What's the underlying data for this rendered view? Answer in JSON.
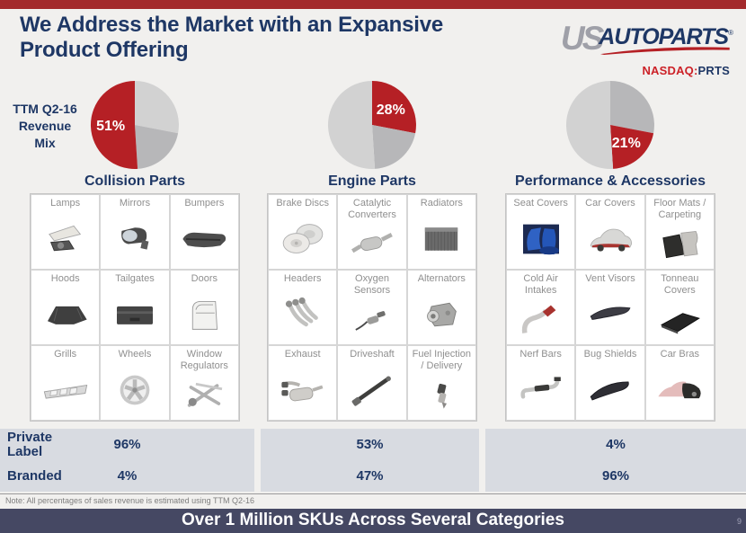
{
  "slide": {
    "title": "We Address the Market with an Expansive\nProduct Offering",
    "revenue_mix_label": "TTM Q2-16\nRevenue\nMix"
  },
  "logo": {
    "us": "US",
    "autoparts": "AUTOPARTS",
    "registered": "®",
    "nasdaq": "NASDAQ:",
    "ticker": "PRTS"
  },
  "colors": {
    "accent_red": "#b52025",
    "navy": "#1e3765",
    "pie_light_gray": "#d2d2d2",
    "pie_mid_gray": "#b7b7b9",
    "table_bg": "#d8dbe1",
    "footer_bg": "#454863",
    "top_bar": "#a32a2c"
  },
  "chart_data": [
    {
      "type": "pie",
      "title": "Collision Parts",
      "label": "51%",
      "slices": [
        {
          "name": "Engine Parts",
          "value": 28,
          "color": "#d2d2d2"
        },
        {
          "name": "Performance & Accessories",
          "value": 21,
          "color": "#b7b7b9"
        },
        {
          "name": "Collision Parts",
          "value": 51,
          "color": "#b52025",
          "label": "51%"
        }
      ]
    },
    {
      "type": "pie",
      "title": "Engine Parts",
      "label": "28%",
      "slices": [
        {
          "name": "Engine Parts",
          "value": 28,
          "color": "#b52025",
          "label": "28%"
        },
        {
          "name": "Performance & Accessories",
          "value": 21,
          "color": "#b7b7b9"
        },
        {
          "name": "Collision Parts",
          "value": 51,
          "color": "#d2d2d2"
        }
      ]
    },
    {
      "type": "pie",
      "title": "Performance & Accessories",
      "label": "21%",
      "slices": [
        {
          "name": "Engine Parts",
          "value": 28,
          "color": "#b7b7b9"
        },
        {
          "name": "Performance & Accessories",
          "value": 21,
          "color": "#b52025",
          "label": "21%"
        },
        {
          "name": "Collision Parts",
          "value": 51,
          "color": "#d2d2d2"
        }
      ]
    }
  ],
  "categories": [
    {
      "title": "Collision Parts",
      "share": "51%",
      "private_label": "96%",
      "branded": "4%",
      "items": [
        {
          "label": "Lamps",
          "icon": "lamps"
        },
        {
          "label": "Mirrors",
          "icon": "mirrors"
        },
        {
          "label": "Bumpers",
          "icon": "bumpers"
        },
        {
          "label": "Hoods",
          "icon": "hoods"
        },
        {
          "label": "Tailgates",
          "icon": "tailgates"
        },
        {
          "label": "Doors",
          "icon": "doors"
        },
        {
          "label": "Grills",
          "icon": "grills"
        },
        {
          "label": "Wheels",
          "icon": "wheels"
        },
        {
          "label": "Window Regulators",
          "icon": "window-regulators"
        }
      ]
    },
    {
      "title": "Engine Parts",
      "share": "28%",
      "private_label": "53%",
      "branded": "47%",
      "items": [
        {
          "label": "Brake Discs",
          "icon": "brake-discs"
        },
        {
          "label": "Catalytic Converters",
          "icon": "catalytic-converters"
        },
        {
          "label": "Radiators",
          "icon": "radiators"
        },
        {
          "label": "Headers",
          "icon": "headers"
        },
        {
          "label": "Oxygen Sensors",
          "icon": "oxygen-sensors"
        },
        {
          "label": "Alternators",
          "icon": "alternators"
        },
        {
          "label": "Exhaust",
          "icon": "exhaust"
        },
        {
          "label": "Driveshaft",
          "icon": "driveshaft"
        },
        {
          "label": "Fuel Injection / Delivery",
          "icon": "fuel-injection"
        }
      ]
    },
    {
      "title": "Performance & Accessories",
      "share": "21%",
      "private_label": "4%",
      "branded": "96%",
      "items": [
        {
          "label": "Seat Covers",
          "icon": "seat-covers"
        },
        {
          "label": "Car Covers",
          "icon": "car-covers"
        },
        {
          "label": "Floor Mats / Carpeting",
          "icon": "floor-mats"
        },
        {
          "label": "Cold Air Intakes",
          "icon": "cold-air-intakes"
        },
        {
          "label": "Vent Visors",
          "icon": "vent-visors"
        },
        {
          "label": "Tonneau Covers",
          "icon": "tonneau-covers"
        },
        {
          "label": "Nerf Bars",
          "icon": "nerf-bars"
        },
        {
          "label": "Bug Shields",
          "icon": "bug-shields"
        },
        {
          "label": "Car Bras",
          "icon": "car-bras"
        }
      ]
    }
  ],
  "mix_table": {
    "row_labels": [
      "Private Label",
      "Branded"
    ]
  },
  "footer": {
    "note": "Note: All percentages of sales revenue is estimated using TTM Q2-16",
    "banner": "Over 1 Million SKUs Across Several Categories",
    "page_number": "9"
  }
}
